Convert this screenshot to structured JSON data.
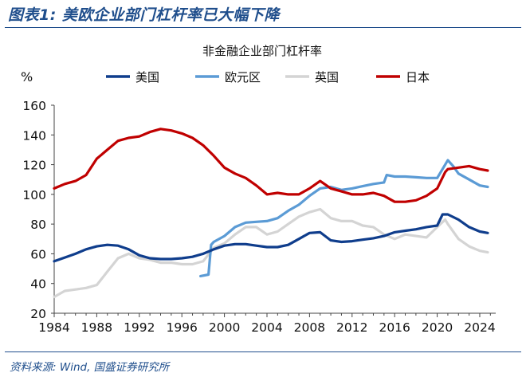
{
  "figure": {
    "title": "图表1:  美欧企业部门杠杆率已大幅下降",
    "source": "资料来源:  Wind,  国盛证券研究所",
    "accent_color": "#1f4e8c"
  },
  "chart_data": {
    "type": "line",
    "title": "非金融企业部门杠杆率",
    "ylabel": "%",
    "xlabel": "",
    "xlim": [
      1984,
      2025.5
    ],
    "ylim": [
      20,
      160
    ],
    "xticks": [
      1984,
      1988,
      1992,
      1996,
      2000,
      2004,
      2008,
      2012,
      2016,
      2020,
      2024
    ],
    "yticks": [
      20,
      40,
      60,
      80,
      100,
      120,
      140,
      160
    ],
    "grid": false,
    "legend_position": "top",
    "series": [
      {
        "name": "美国",
        "color": "#0f3d8c",
        "x": [
          1984,
          1985,
          1986,
          1987,
          1988,
          1989,
          1990,
          1991,
          1992,
          1993,
          1994,
          1995,
          1996,
          1997,
          1998,
          1999,
          2000,
          2001,
          2002,
          2003,
          2004,
          2005,
          2006,
          2007,
          2008,
          2009,
          2010,
          2011,
          2012,
          2013,
          2014,
          2015,
          2016,
          2017,
          2018,
          2019,
          2020,
          2020.5,
          2021,
          2022,
          2023,
          2024,
          2024.75
        ],
        "y": [
          55,
          57.5,
          60,
          63,
          65,
          66,
          65.5,
          63,
          59,
          57,
          56.5,
          56.5,
          57,
          58,
          60,
          63,
          65.5,
          66.5,
          66.5,
          65.5,
          64.5,
          64.5,
          66,
          70,
          74,
          74.5,
          69,
          68,
          68.5,
          69.5,
          70.5,
          72,
          74.5,
          75.5,
          76.5,
          78,
          79,
          86.5,
          86.5,
          83,
          78,
          75,
          74
        ]
      },
      {
        "name": "欧元区",
        "color": "#5b9bd5",
        "x": [
          1997.75,
          1998.5,
          1998.75,
          1999,
          2000,
          2001,
          2002,
          2003,
          2004,
          2005,
          2006,
          2007,
          2008,
          2009,
          2010,
          2011,
          2012,
          2013,
          2014,
          2015,
          2015.25,
          2016,
          2017,
          2018,
          2019,
          2020,
          2020.75,
          2021,
          2021.5,
          2022,
          2023,
          2024,
          2024.75
        ],
        "y": [
          45,
          46,
          66,
          68,
          72,
          78,
          81,
          81.5,
          82,
          84,
          89,
          93,
          99,
          104,
          105,
          103,
          104,
          105.5,
          107,
          108,
          113,
          112,
          112,
          111.5,
          111,
          111,
          120,
          123,
          119,
          114,
          110,
          106,
          105
        ]
      },
      {
        "name": "英国",
        "color": "#d4d4d4",
        "x": [
          1984,
          1985,
          1986,
          1987,
          1988,
          1989,
          1990,
          1991,
          1992,
          1993,
          1994,
          1995,
          1996,
          1997,
          1998,
          1999,
          2000,
          2001,
          2002,
          2003,
          2004,
          2005,
          2006,
          2007,
          2008,
          2009,
          2010,
          2011,
          2012,
          2013,
          2014,
          2015,
          2016,
          2017,
          2018,
          2019,
          2020,
          2020.75,
          2021,
          2022,
          2023,
          2024,
          2024.75
        ],
        "y": [
          31,
          35,
          36,
          37,
          39,
          48,
          57,
          60,
          57,
          56,
          54,
          54,
          53,
          53,
          55,
          64,
          67,
          73,
          78,
          78,
          73,
          75,
          80,
          85,
          88,
          90,
          84,
          82,
          82,
          79,
          78,
          73,
          70,
          73,
          72,
          71,
          78,
          83,
          80,
          70,
          65,
          62,
          61
        ]
      },
      {
        "name": "日本",
        "color": "#c00000",
        "x": [
          1984,
          1985,
          1986,
          1987,
          1988,
          1989,
          1990,
          1991,
          1992,
          1993,
          1994,
          1995,
          1996,
          1997,
          1998,
          1999,
          2000,
          2001,
          2002,
          2003,
          2004,
          2005,
          2006,
          2007,
          2008,
          2009,
          2010,
          2011,
          2012,
          2013,
          2014,
          2015,
          2016,
          2017,
          2018,
          2019,
          2020,
          2020.75,
          2021,
          2022,
          2023,
          2024,
          2024.75
        ],
        "y": [
          104,
          107,
          109,
          113,
          124,
          130,
          136,
          138,
          139,
          142,
          144,
          143,
          141,
          138,
          133,
          126,
          118,
          114,
          111,
          106,
          100,
          101,
          100,
          100,
          104,
          109,
          104,
          102,
          100,
          100,
          101,
          99,
          95,
          95,
          96,
          99,
          104,
          115,
          117,
          118,
          119,
          117,
          116
        ]
      }
    ]
  }
}
